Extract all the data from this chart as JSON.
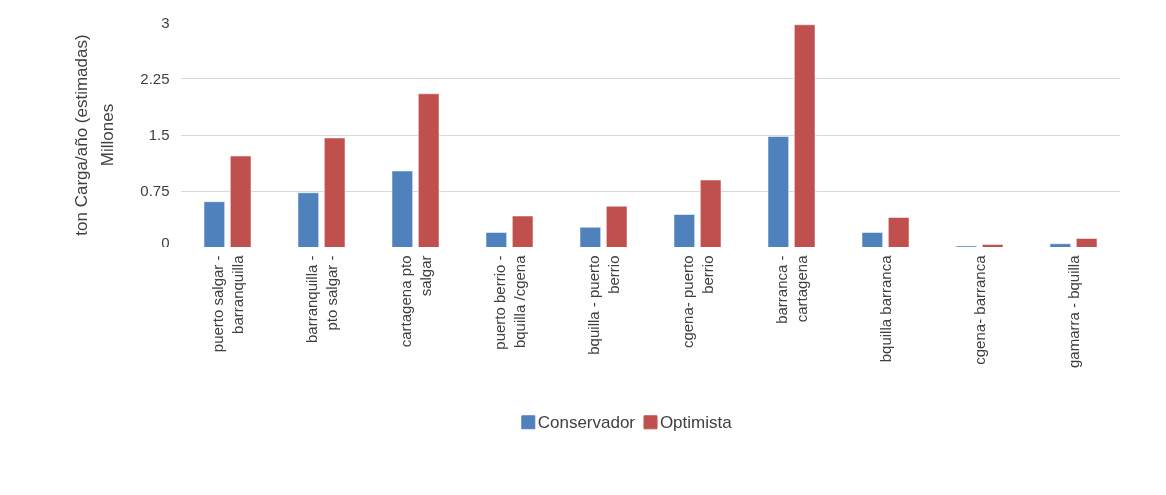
{
  "chart_data": {
    "type": "bar",
    "ylabel": "ton Carga/año (estimadas)",
    "annotations": [
      "Millones"
    ],
    "categories": [
      "puerto salgar - barranquilla",
      "barranquilla - pto salgar -",
      "cartagena pto salgar",
      "puerto berrio - bquilla /cgena",
      "bquilla - puerto berrio",
      "cgena- puerto berrio",
      "barranca - cartagena",
      "bquilla barranca",
      "cgena- barranca",
      "gamarra - bquilla"
    ],
    "series": [
      {
        "name": "Conservador",
        "color": "#4f81bd",
        "values": [
          0.61,
          0.73,
          1.02,
          0.2,
          0.27,
          0.44,
          1.48,
          0.2,
          0.02,
          0.05
        ]
      },
      {
        "name": "Optimista",
        "color": "#c0504d",
        "values": [
          1.22,
          1.46,
          2.05,
          0.42,
          0.55,
          0.9,
          2.97,
          0.4,
          0.04,
          0.12
        ]
      }
    ],
    "ylim": [
      0,
      3
    ],
    "yticks": [
      0,
      {
        "value": 0.75,
        "label": "0.75"
      },
      {
        "value": 1.5,
        "label": "1.5"
      },
      {
        "value": 2.25,
        "label": "2.25"
      },
      3
    ],
    "grid": "y",
    "legend": "bottom"
  }
}
